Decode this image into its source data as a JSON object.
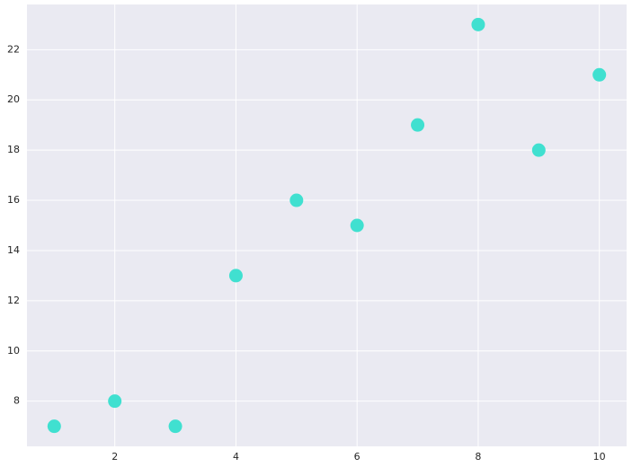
{
  "chart_data": {
    "type": "scatter",
    "x": [
      1,
      2,
      3,
      4,
      5,
      6,
      7,
      8,
      9,
      10
    ],
    "values": [
      7,
      8,
      7,
      13,
      16,
      15,
      19,
      23,
      18,
      21
    ],
    "color": "#40e0d0",
    "xlim": [
      0.55,
      10.45
    ],
    "ylim": [
      6.2,
      23.8
    ],
    "xticks": [
      2,
      4,
      6,
      8,
      10
    ],
    "yticks": [
      8,
      10,
      12,
      14,
      16,
      18,
      20,
      22
    ],
    "grid": true
  }
}
